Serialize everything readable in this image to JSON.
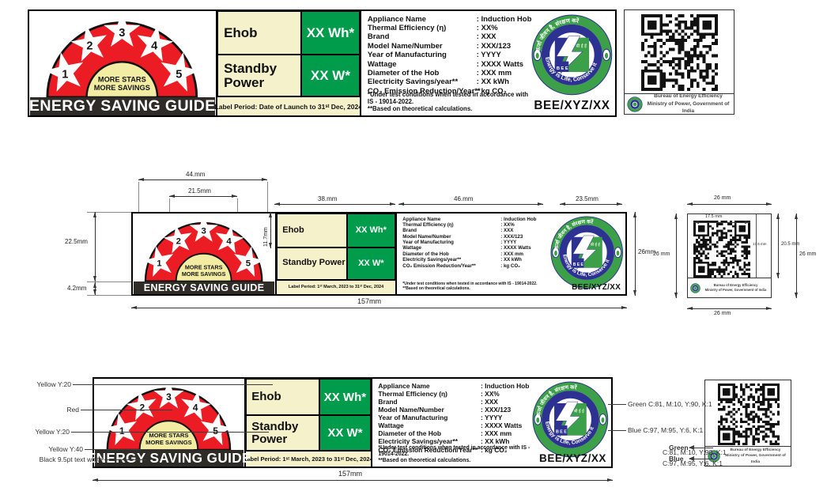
{
  "label": {
    "guide": {
      "title": "ENERGY SAVING GUIDE",
      "more1": "MORE STARS",
      "more2": "MORE SAVINGS",
      "stars": [
        "1",
        "2",
        "3",
        "4",
        "5"
      ]
    },
    "table": {
      "r1_name": "Ehob",
      "r1_val": "XX Wh*",
      "r2_name": "Standby Power",
      "r2_val": "XX W*"
    },
    "period_launch": "Label Period: Date of Launch to 31ˢᵗ Dec, 2024",
    "period_2023": "Label Period: 1ˢᵗ March, 2023 to 31ˢᵗ Dec, 2024",
    "details": [
      {
        "k": "Appliance Name",
        "v": ": Induction Hob"
      },
      {
        "k": "Thermal Efficiency (η)",
        "v": ": XX%"
      },
      {
        "k": "Brand",
        "v": ": XXX"
      },
      {
        "k": "Model Name/Number",
        "v": ": XXX/123"
      },
      {
        "k": "Year of Manufacturing",
        "v": ": YYYY"
      },
      {
        "k": "Wattage",
        "v": ": XXXX Watts"
      },
      {
        "k": "Diameter of the Hob",
        "v": ": XXX mm"
      },
      {
        "k": "Electricity Savings/year**",
        "v": ": XX kWh"
      },
      {
        "k": "CO₂ Emission Reduction/Year**",
        "v": ": kg CO₂"
      }
    ],
    "note1": "*Under test conditions when tested in accordance with IS - 19014-2022.",
    "note2": "**Based on theoretical calculations.",
    "cert_code": "BEE/XYZ/XX",
    "logo": {
      "arc_top": "ऊर्जा जीवन है, संरक्षण करें",
      "arc_bottom": "Energy is Life, Conserve it",
      "bee": "B E E",
      "bee_hindi": "बी ई ई"
    }
  },
  "qr_block": {
    "org1": "Bureau of Energy Efficiency",
    "org2": "Ministry of Power, Government of India"
  },
  "dimensions": {
    "arch_w": "44.mm",
    "dome_w": "21.5mm",
    "arch_h": "22.5mm",
    "bar_h": "4.2mm",
    "row_h": "11.7mm",
    "table_w": "38.mm",
    "info_w": "46.mm",
    "logo_w": "23.5mm",
    "label_h": "26mm",
    "total_w": "157mm",
    "qr_w_top": "26 mm",
    "qr_w_bottom": "26 mm",
    "qr_h_left": "26 mm",
    "qr_h_right": "26 mm",
    "qr_inner_w": "17.5 mm",
    "qr_inner_h": "17.5 mm",
    "qr_code_h": "20.5 mm"
  },
  "colors_callouts": {
    "yellow20_a": "Yellow Y:20",
    "red": "Red",
    "yellow20_b": "Yellow Y:20",
    "yellow40": "Yellow Y:40",
    "black_bar": "Black 9.5pt text white",
    "green": "Green C:81, M:10, Y:90, K:1",
    "blue": "Blue C:97, M:95, Y:6, K:1",
    "qr_green_name": "Green",
    "qr_green_val": "C:81, M:10, Y:90, K:1",
    "qr_blue_name": "Blue",
    "qr_blue_val": "C:97, M:95, Y:6, K:1"
  },
  "palette": {
    "red": "#ec1c24",
    "arch_yellow": "#f3eda4",
    "cream": "#f5f1cb",
    "table_green": "#009c4b",
    "bar_black": "#2f2b26",
    "logo_green": "#3ba047",
    "logo_blue": "#2d3192"
  }
}
